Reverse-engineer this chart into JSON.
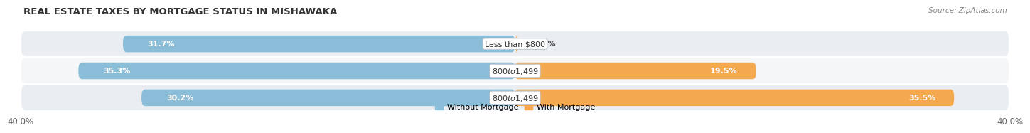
{
  "title": "REAL ESTATE TAXES BY MORTGAGE STATUS IN MISHAWAKA",
  "source": "Source: ZipAtlas.com",
  "rows": [
    {
      "label": "Less than $800",
      "without_mortgage": 31.7,
      "with_mortgage": 0.29
    },
    {
      "label": "$800 to $1,499",
      "without_mortgage": 35.3,
      "with_mortgage": 19.5
    },
    {
      "label": "$800 to $1,499",
      "without_mortgage": 30.2,
      "with_mortgage": 35.5
    }
  ],
  "xlim_left": -40,
  "xlim_right": 40,
  "xtick_label_left": "40.0%",
  "xtick_label_right": "40.0%",
  "color_without": "#89BDD8",
  "color_with": "#F5A94E",
  "color_without_dark": "#5B9BBF",
  "color_with_dark": "#E08B20",
  "bar_height": 0.62,
  "row_bg_even": "#EAEEF2",
  "row_bg_odd": "#F4F6F8",
  "legend_without": "Without Mortgage",
  "legend_with": "With Mortgage",
  "title_fontsize": 9.5,
  "label_fontsize": 8,
  "value_fontsize": 8,
  "tick_fontsize": 8.5,
  "source_fontsize": 7.5
}
